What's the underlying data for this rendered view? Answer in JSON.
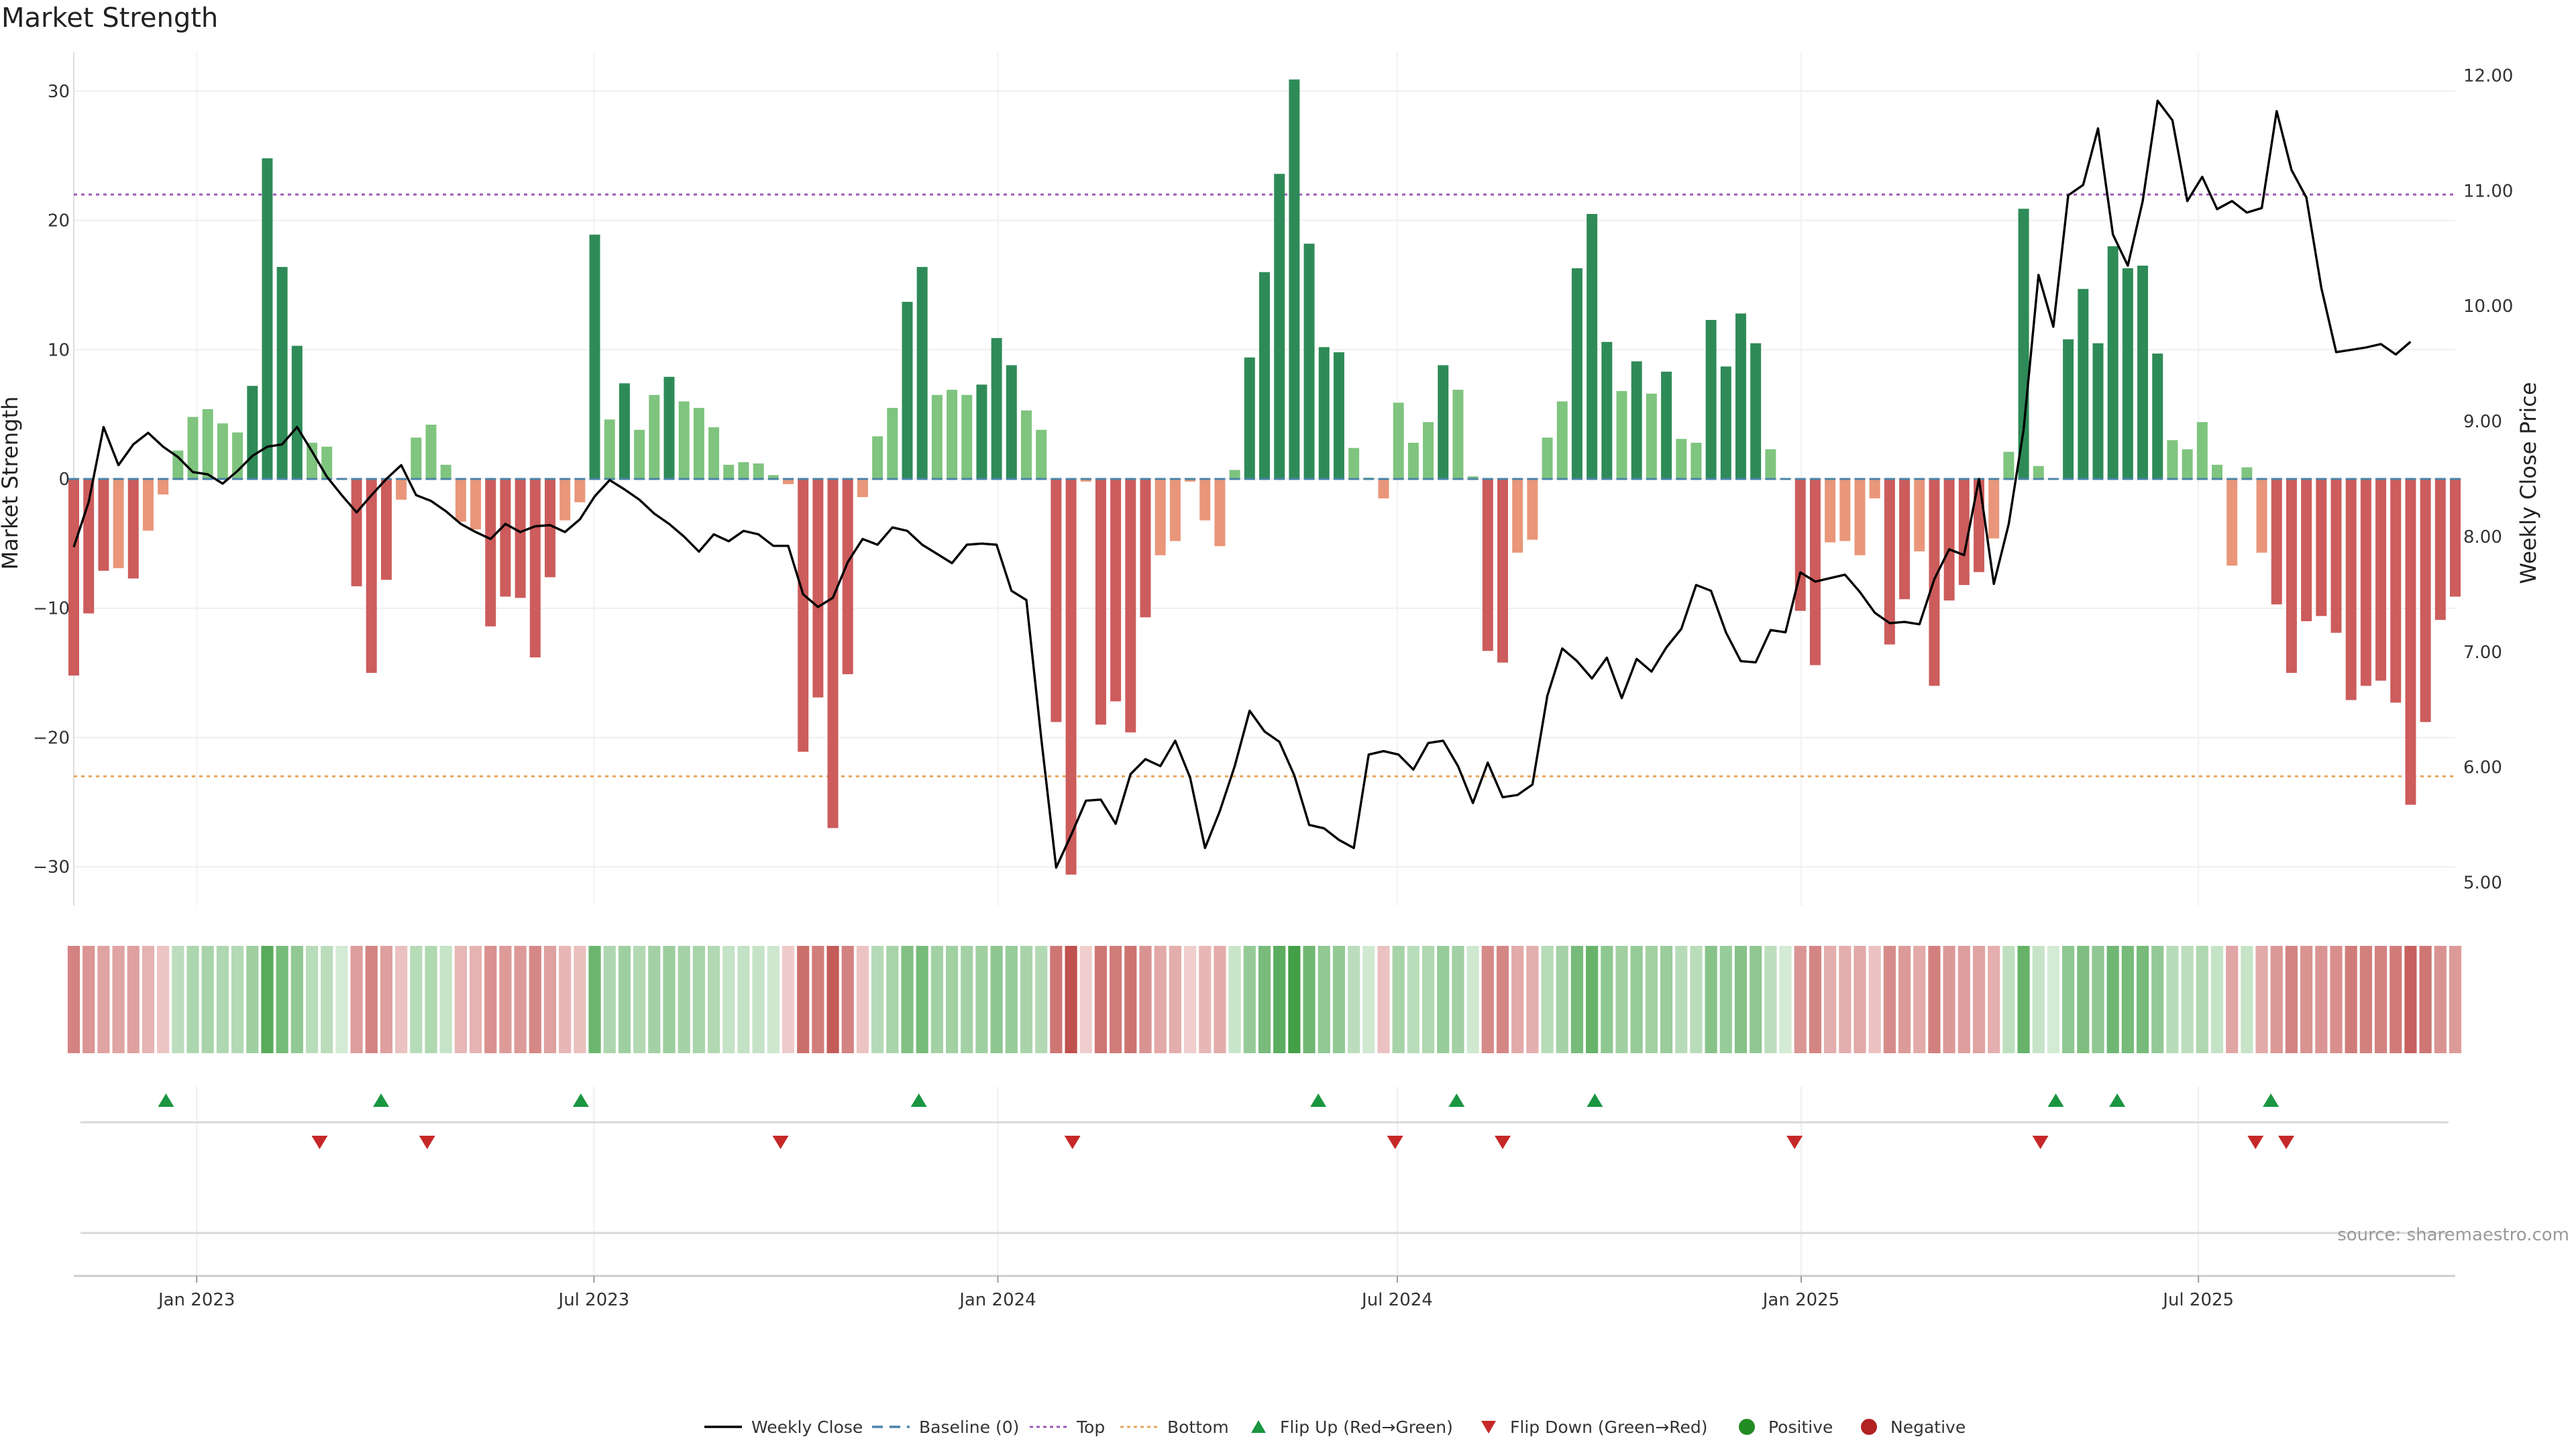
{
  "chart_data": {
    "type": "bar",
    "title": "Market Strength",
    "ylabel": "Market Strength",
    "y2label": "Weekly Close Price",
    "ylim": [
      -33,
      33
    ],
    "y2lim": [
      4.8,
      12.2
    ],
    "yticks": [
      30,
      20,
      10,
      0,
      -10,
      -20,
      -30
    ],
    "ytick_labels": [
      "30",
      "20",
      "10",
      "0",
      "−10",
      "−20",
      "−30"
    ],
    "y2ticks": [
      12.0,
      11.0,
      10.0,
      9.0,
      8.0,
      7.0,
      6.0,
      5.0
    ],
    "y2tick_labels": [
      "12.00",
      "11.00",
      "10.00",
      "9.00",
      "8.00",
      "7.00",
      "6.00",
      "5.00"
    ],
    "x_start": "2022-11-06",
    "x_end": "2025-10-26",
    "xtick_dates": [
      "2023-01-01",
      "2023-07-01",
      "2024-01-01",
      "2024-07-01",
      "2025-01-01",
      "2025-07-01"
    ],
    "xtick_labels": [
      "Jan 2023",
      "Jul 2023",
      "Jan 2024",
      "Jul 2024",
      "Jan 2025",
      "Jul 2025"
    ],
    "top_line": 22,
    "bottom_line": -23,
    "grid": true,
    "legend_position": "bottom",
    "strength": [
      -15.2,
      -10.4,
      -7.1,
      -6.9,
      -7.7,
      -4.0,
      -1.2,
      2.2,
      4.8,
      5.4,
      4.3,
      3.6,
      7.2,
      24.8,
      16.4,
      10.3,
      2.8,
      2.5,
      0.0,
      -8.3,
      -15.0,
      -7.8,
      -1.6,
      3.2,
      4.2,
      1.1,
      -3.3,
      -3.9,
      -11.4,
      -9.1,
      -9.2,
      -13.8,
      -7.6,
      -3.2,
      -1.8,
      18.9,
      4.6,
      7.4,
      3.8,
      6.5,
      7.9,
      6.0,
      5.5,
      4.0,
      1.1,
      1.3,
      1.2,
      0.3,
      -0.4,
      -21.1,
      -16.9,
      -27.0,
      -15.1,
      -1.4,
      3.3,
      5.5,
      13.7,
      16.4,
      6.5,
      6.9,
      6.5,
      7.3,
      10.9,
      8.8,
      5.3,
      3.8,
      -18.8,
      -30.6,
      -0.2,
      -19.0,
      -17.2,
      -19.6,
      -10.7,
      -5.9,
      -4.8,
      -0.2,
      -3.2,
      -5.2,
      0.7,
      9.4,
      16.0,
      23.6,
      30.9,
      18.2,
      10.2,
      9.8,
      2.4,
      0.1,
      -1.5,
      5.9,
      2.8,
      4.4,
      8.8,
      6.9,
      0.2,
      -13.3,
      -14.2,
      -5.7,
      -4.7,
      3.2,
      6.0,
      16.3,
      20.5,
      10.6,
      6.8,
      9.1,
      6.6,
      8.3,
      3.1,
      2.8,
      12.3,
      8.7,
      12.8,
      10.5,
      2.3,
      0.0,
      -10.2,
      -14.4,
      -4.9,
      -4.8,
      -5.9,
      -1.5,
      -12.8,
      -9.3,
      -5.6,
      -16.0,
      -9.4,
      -8.2,
      -7.2,
      -4.6,
      2.1,
      20.9,
      1.0,
      0.0,
      10.8,
      14.7,
      10.5,
      18.0,
      16.3,
      16.5,
      9.7,
      3.0,
      2.3,
      4.4,
      1.1,
      -6.7,
      0.9,
      -5.7,
      -9.7,
      -15.0,
      -11.0,
      -10.6,
      -11.9,
      -17.1,
      -16.0,
      -15.6,
      -17.3,
      -25.2,
      -18.8,
      -10.9,
      -9.1
    ],
    "weekly_close": [
      7.91,
      8.3,
      8.95,
      8.62,
      8.8,
      8.9,
      8.78,
      8.69,
      8.56,
      8.54,
      8.46,
      8.57,
      8.7,
      8.78,
      8.8,
      8.95,
      8.74,
      8.52,
      8.36,
      8.21,
      8.36,
      8.5,
      8.62,
      8.36,
      8.31,
      8.22,
      8.11,
      8.04,
      7.98,
      8.11,
      8.04,
      8.09,
      8.1,
      8.04,
      8.15,
      8.35,
      8.49,
      8.41,
      8.32,
      8.2,
      8.11,
      8.0,
      7.87,
      8.02,
      7.96,
      8.05,
      8.02,
      7.92,
      7.92,
      7.5,
      7.39,
      7.47,
      7.78,
      7.98,
      7.93,
      8.08,
      8.05,
      7.93,
      7.85,
      7.77,
      7.93,
      7.94,
      7.93,
      7.53,
      7.45,
      6.25,
      5.13,
      5.41,
      5.71,
      5.72,
      5.51,
      5.94,
      6.07,
      6.01,
      6.23,
      5.91,
      5.3,
      5.62,
      6.01,
      6.49,
      6.31,
      6.22,
      5.93,
      5.5,
      5.47,
      5.37,
      5.3,
      6.11,
      6.14,
      6.11,
      5.98,
      6.21,
      6.23,
      6.01,
      5.69,
      6.04,
      5.74,
      5.76,
      5.85,
      6.62,
      7.03,
      6.92,
      6.77,
      6.95,
      6.6,
      6.94,
      6.83,
      7.04,
      7.2,
      7.58,
      7.53,
      7.17,
      6.92,
      6.91,
      7.19,
      7.17,
      7.69,
      7.61,
      7.64,
      7.67,
      7.52,
      7.34,
      7.25,
      7.26,
      7.24,
      7.63,
      7.89,
      7.84,
      8.5,
      7.59,
      8.11,
      8.93,
      10.27,
      9.82,
      10.96,
      11.05,
      11.54,
      10.62,
      10.35,
      10.91,
      11.78,
      11.61,
      10.91,
      11.12,
      10.84,
      10.91,
      10.81,
      10.85,
      11.69,
      11.18,
      10.94,
      10.16,
      9.6,
      9.62,
      9.64,
      9.67,
      9.58,
      9.69
    ],
    "heat_strip_note": "",
    "flip_up_dates": [
      "2022-12-18",
      "2023-03-26",
      "2023-06-25",
      "2023-11-26",
      "2024-05-26",
      "2024-07-28",
      "2024-09-29",
      "2025-04-27",
      "2025-05-25",
      "2025-08-03"
    ],
    "flip_down_dates": [
      "2023-02-26",
      "2023-04-16",
      "2023-09-24",
      "2024-02-04",
      "2024-06-30",
      "2024-08-18",
      "2024-12-29",
      "2025-04-20",
      "2025-07-27",
      "2025-08-10"
    ],
    "legend": [
      "Weekly Close",
      "Baseline (0)",
      "Top",
      "Bottom",
      "Flip Up (Red→Green)",
      "Flip Down (Green→Red)",
      "Positive",
      "Negative"
    ],
    "source": "source: sharemaestro.com"
  },
  "colors": {
    "green_dark": "#2e8b57",
    "green_light": "#7fc47f",
    "red_dark": "#cd5c5c",
    "red_light": "#e9967a",
    "top_line": "#9b59b6",
    "bottom_line": "#e8a55a",
    "baseline": "#4a84a8",
    "flip_up": "#1a9641",
    "flip_down": "#c62828",
    "positive": "#228b22",
    "negative": "#b22222"
  }
}
